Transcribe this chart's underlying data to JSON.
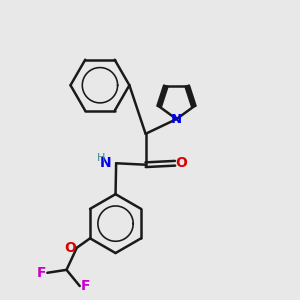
{
  "bg_color": "#e8e8e8",
  "bond_color": "#1a1a1a",
  "N_color": "#0000ee",
  "O_color": "#dd0000",
  "F_color": "#cc00cc",
  "H_color": "#3a8a8a",
  "figsize": [
    3.0,
    3.0
  ],
  "dpi": 100,
  "xlim": [
    0,
    10
  ],
  "ylim": [
    0,
    10
  ]
}
